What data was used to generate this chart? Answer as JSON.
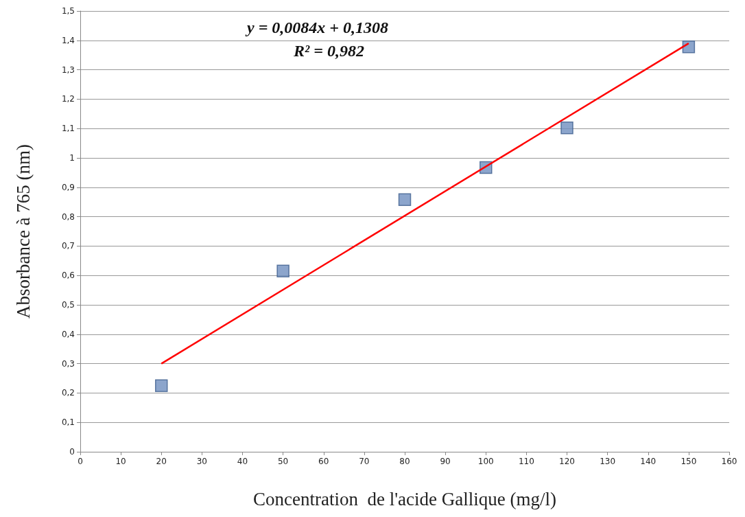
{
  "chart_data": {
    "type": "scatter",
    "xlabel": "Concentration  de l'acide Gallique (mg/l)",
    "ylabel": "Absorbance à 765 (nm)",
    "annotations": [
      "y = 0,0084x + 0,1308",
      "R² = 0,982"
    ],
    "grid": "y",
    "xlim": [
      0,
      160
    ],
    "xticks": [
      0,
      10,
      20,
      30,
      40,
      50,
      60,
      70,
      80,
      90,
      100,
      110,
      120,
      130,
      140,
      150,
      160
    ],
    "ylim": [
      0,
      1.5
    ],
    "yticks": [
      0,
      {
        "value": 0.1,
        "label": "0,1"
      },
      {
        "value": 0.2,
        "label": "0,2"
      },
      {
        "value": 0.3,
        "label": "0,3"
      },
      {
        "value": 0.4,
        "label": "0,4"
      },
      {
        "value": 0.5,
        "label": "0,5"
      },
      {
        "value": 0.6,
        "label": "0,6"
      },
      {
        "value": 0.7,
        "label": "0,7"
      },
      {
        "value": 0.8,
        "label": "0,8"
      },
      {
        "value": 0.9,
        "label": "0,9"
      },
      1,
      {
        "value": 1.1,
        "label": "1,1"
      },
      {
        "value": 1.2,
        "label": "1,2"
      },
      {
        "value": 1.3,
        "label": "1,3"
      },
      {
        "value": 1.4,
        "label": "1,4"
      },
      {
        "value": 1.5,
        "label": "1,5"
      }
    ],
    "series": [
      {
        "marker": "square",
        "color": "#6f8fbf",
        "x": [
          20,
          50,
          80,
          100,
          120,
          150
        ],
        "values": [
          0.225,
          0.615,
          0.858,
          0.967,
          1.102,
          1.378
        ]
      },
      {
        "type": "line",
        "marker": "none",
        "color": "#ff0000",
        "x": [
          20,
          150
        ],
        "values": [
          0.3,
          1.39
        ]
      }
    ]
  }
}
